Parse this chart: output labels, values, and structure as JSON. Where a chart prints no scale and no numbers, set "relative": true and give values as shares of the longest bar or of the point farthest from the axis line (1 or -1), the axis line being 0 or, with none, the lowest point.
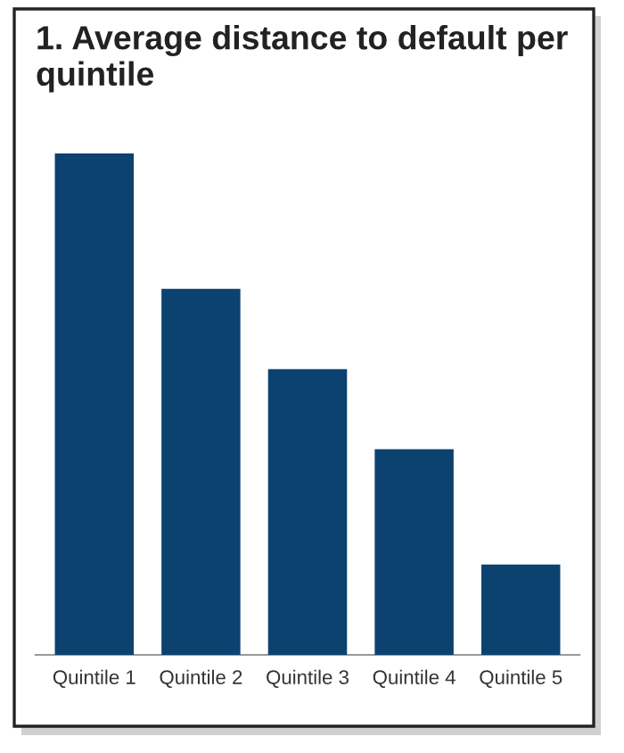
{
  "chart_data": {
    "type": "bar",
    "title": "1. Average distance to default per quintile",
    "categories": [
      "Quintile 1",
      "Quintile 2",
      "Quintile 3",
      "Quintile 4",
      "Quintile 5"
    ],
    "values": [
      1,
      0.73,
      0.57,
      0.41,
      0.18
    ],
    "color": "#0b4270",
    "relative": true,
    "grid": false,
    "legend": false
  }
}
